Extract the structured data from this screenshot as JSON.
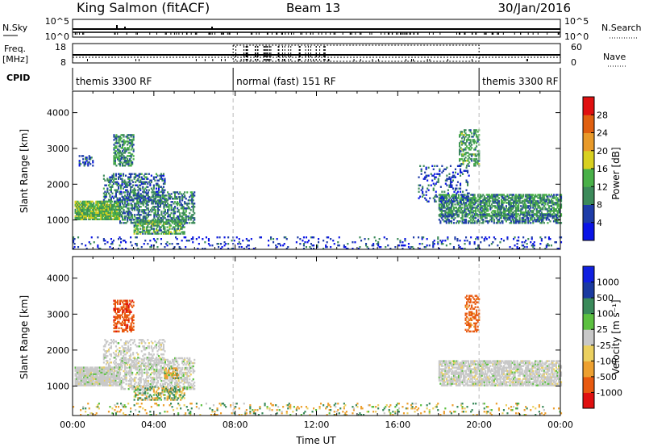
{
  "header": {
    "station": "King Salmon (fitACF)",
    "beam": "Beam 13",
    "date": "30/Jan/2016"
  },
  "top_panel": {
    "left_label_top": "N.Sky",
    "left_label_ticks": [
      "10^5",
      "10^0"
    ],
    "right_label": "N.Search",
    "right_ticks": [
      "10^5",
      "10^0"
    ],
    "freq_label_1": "Freq.",
    "freq_label_2": "[MHz]",
    "freq_ticks": [
      "18",
      "8"
    ],
    "nave_label": "Nave",
    "nave_ticks": [
      "60",
      "0"
    ],
    "cpid_label": "CPID",
    "cpid_segments": [
      {
        "label": "themis 3300 RF",
        "start_hour": 0,
        "end_hour": 7.9
      },
      {
        "label": "normal (fast) 151 RF",
        "start_hour": 7.9,
        "end_hour": 20.0
      },
      {
        "label": "themis 3300 RF",
        "start_hour": 20.0,
        "end_hour": 24
      }
    ]
  },
  "chart_data": [
    {
      "type": "heatmap",
      "panel": "power",
      "ylabel": "Slant Range [km]",
      "yticks": [
        1000,
        2000,
        3000,
        4000
      ],
      "ylim": [
        180,
        4600
      ],
      "xlim_hours": [
        0,
        24
      ],
      "colorbar_label": "Power [dB]",
      "colorbar_ticks": [
        "4",
        "8",
        "12",
        "16",
        "20",
        "24",
        "28"
      ],
      "colorbar_range": [
        0,
        32
      ],
      "colors": [
        "#0a14e6",
        "#1e3ca8",
        "#3c8a5a",
        "#49b048",
        "#d8d020",
        "#e89a2a",
        "#e06010",
        "#e01010"
      ],
      "regions": [
        {
          "t0": 0.1,
          "t1": 2.3,
          "r0": 1000,
          "r1": 1500,
          "power": 14,
          "density": 0.9
        },
        {
          "t0": 2.3,
          "t1": 6.0,
          "r0": 900,
          "r1": 1800,
          "power": 9,
          "density": 0.5
        },
        {
          "t0": 2.0,
          "t1": 3.0,
          "r0": 2500,
          "r1": 3400,
          "power": 11,
          "density": 0.55
        },
        {
          "t0": 0.3,
          "t1": 1.0,
          "r0": 2500,
          "r1": 2800,
          "power": 6,
          "density": 0.4
        },
        {
          "t0": 1.5,
          "t1": 4.5,
          "r0": 1500,
          "r1": 2300,
          "power": 8,
          "density": 0.35
        },
        {
          "t0": 3.0,
          "t1": 5.5,
          "r0": 600,
          "r1": 1000,
          "power": 12,
          "density": 0.6
        },
        {
          "t0": 18.0,
          "t1": 24.0,
          "r0": 1100,
          "r1": 1700,
          "power": 11,
          "density": 0.65
        },
        {
          "t0": 18.0,
          "t1": 24.0,
          "r0": 900,
          "r1": 1150,
          "power": 9,
          "density": 0.5
        },
        {
          "t0": 19.0,
          "t1": 20.0,
          "r0": 2500,
          "r1": 3500,
          "power": 12,
          "density": 0.45
        },
        {
          "t0": 17.0,
          "t1": 19.5,
          "r0": 1500,
          "r1": 2500,
          "power": 6,
          "density": 0.2
        },
        {
          "t0": 0.0,
          "t1": 24.0,
          "r0": 180,
          "r1": 500,
          "power": 5,
          "density": 0.12
        }
      ]
    },
    {
      "type": "heatmap",
      "panel": "velocity",
      "ylabel": "Slant Range [km]",
      "yticks": [
        1000,
        2000,
        3000,
        4000
      ],
      "ylim": [
        180,
        4600
      ],
      "xlim_hours": [
        0,
        24
      ],
      "xticks": [
        "00:00",
        "04:00",
        "08:00",
        "12:00",
        "16:00",
        "20:00",
        "00:00"
      ],
      "xlabel": "Time UT",
      "colorbar_label": "Velocity [m s⁻¹]",
      "colorbar_ticks": [
        "-1000",
        "-500",
        "-100",
        "-25",
        "25",
        "100",
        "500",
        "1000"
      ],
      "colors": [
        "#e01010",
        "#e85a10",
        "#eda030",
        "#ebd060",
        "#c8c8c8",
        "#5cc040",
        "#3a8a5a",
        "#1a3aa0",
        "#1020e0"
      ],
      "regions": [
        {
          "t0": 0.1,
          "t1": 2.3,
          "r0": 1000,
          "r1": 1500,
          "vel": 0,
          "density": 0.9
        },
        {
          "t0": 2.3,
          "t1": 6.0,
          "r0": 900,
          "r1": 1800,
          "vel": 0,
          "density": 0.45
        },
        {
          "t0": 2.0,
          "t1": 3.0,
          "r0": 2500,
          "r1": 3400,
          "vel": -800,
          "density": 0.5
        },
        {
          "t0": 1.5,
          "t1": 4.5,
          "r0": 1500,
          "r1": 2300,
          "vel": 0,
          "density": 0.3
        },
        {
          "t0": 4.5,
          "t1": 5.2,
          "r0": 1200,
          "r1": 1500,
          "vel": -150,
          "density": 0.6
        },
        {
          "t0": 3.0,
          "t1": 5.5,
          "r0": 600,
          "r1": 1000,
          "vel": 50,
          "density": 0.45
        },
        {
          "t0": 18.0,
          "t1": 24.0,
          "r0": 1000,
          "r1": 1700,
          "vel": 0,
          "density": 0.7
        },
        {
          "t0": 19.3,
          "t1": 20.0,
          "r0": 2500,
          "r1": 3500,
          "vel": -700,
          "density": 0.45
        },
        {
          "t0": 0.0,
          "t1": 24.0,
          "r0": 180,
          "r1": 500,
          "vel": -40,
          "density": 0.12
        }
      ]
    }
  ]
}
